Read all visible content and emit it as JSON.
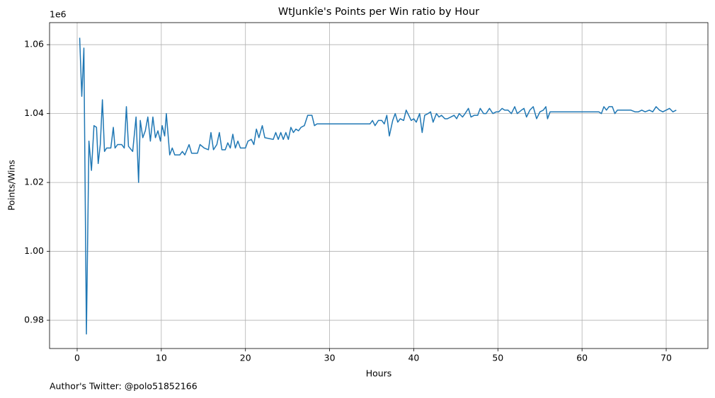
{
  "chart_data": {
    "type": "line",
    "title": "WtJunkîe's Points per Win ratio by Hour",
    "xlabel": "Hours",
    "ylabel": "Points/Wins",
    "y_offset_label": "1e6",
    "footnote": "Author's Twitter: @polo51852166",
    "xlim": [
      -3.28,
      74.96
    ],
    "ylim": [
      0.9718,
      1.0664
    ],
    "xticks": [
      0,
      10,
      20,
      30,
      40,
      50,
      60,
      70
    ],
    "yticks": [
      0.98,
      {
        "value": 1,
        "label": "1.00"
      },
      1.02,
      1.04,
      1.06
    ],
    "grid": true,
    "series": [
      {
        "color": "#1f77b4",
        "x": [
          0.3,
          0.55,
          0.8,
          1.1,
          1.4,
          1.7,
          2.0,
          2.3,
          2.5,
          2.75,
          3.0,
          3.25,
          3.5,
          4.0,
          4.3,
          4.5,
          4.8,
          5.3,
          5.6,
          5.85,
          6.1,
          6.6,
          7.0,
          7.3,
          7.5,
          7.8,
          8.1,
          8.4,
          8.7,
          9.0,
          9.3,
          9.6,
          9.9,
          10.1,
          10.4,
          10.6,
          11.0,
          11.3,
          11.6,
          12.2,
          12.5,
          12.8,
          13.3,
          13.6,
          14.3,
          14.6,
          15.1,
          15.6,
          15.9,
          16.2,
          16.6,
          16.9,
          17.2,
          17.6,
          17.9,
          18.2,
          18.5,
          18.8,
          19.1,
          19.4,
          20.0,
          20.3,
          20.7,
          21.0,
          21.3,
          21.6,
          22.0,
          22.3,
          23.3,
          23.6,
          23.9,
          24.2,
          24.5,
          24.8,
          25.1,
          25.4,
          25.7,
          26.0,
          26.3,
          26.6,
          27.0,
          27.4,
          27.9,
          28.2,
          28.5,
          34.8,
          35.1,
          35.4,
          35.8,
          36.2,
          36.5,
          36.8,
          37.1,
          37.5,
          37.8,
          38.1,
          38.4,
          38.8,
          39.1,
          39.4,
          39.7,
          40.0,
          40.3,
          40.7,
          41.0,
          41.3,
          41.7,
          42.0,
          42.3,
          42.7,
          43.0,
          43.3,
          43.7,
          44.0,
          44.4,
          44.8,
          45.1,
          45.4,
          45.8,
          46.1,
          46.5,
          46.8,
          47.2,
          47.6,
          47.9,
          48.3,
          48.6,
          49.0,
          49.4,
          49.8,
          50.1,
          50.5,
          50.8,
          51.2,
          51.6,
          52.0,
          52.3,
          52.8,
          53.1,
          53.4,
          53.8,
          54.2,
          54.6,
          55.0,
          55.4,
          55.7,
          55.9,
          56.2,
          62.0,
          62.3,
          62.6,
          62.9,
          63.2,
          63.6,
          63.9,
          64.2,
          64.6,
          65.0,
          65.4,
          65.8,
          66.3,
          66.7,
          67.1,
          67.5,
          68.0,
          68.4,
          68.8,
          69.2,
          69.6,
          70.0,
          70.4,
          70.8,
          71.2
        ],
        "values": [
          1.062,
          1.045,
          1.059,
          0.976,
          1.032,
          1.0235,
          1.0365,
          1.036,
          1.0255,
          1.031,
          1.044,
          1.029,
          1.03,
          1.03,
          1.036,
          1.03,
          1.031,
          1.031,
          1.03,
          1.042,
          1.0305,
          1.029,
          1.039,
          1.02,
          1.038,
          1.033,
          1.035,
          1.039,
          1.032,
          1.039,
          1.033,
          1.035,
          1.032,
          1.0365,
          1.0335,
          1.04,
          1.028,
          1.03,
          1.028,
          1.028,
          1.029,
          1.028,
          1.031,
          1.0285,
          1.0285,
          1.031,
          1.03,
          1.0295,
          1.0345,
          1.0295,
          1.031,
          1.0345,
          1.0295,
          1.0295,
          1.0315,
          1.03,
          1.034,
          1.03,
          1.032,
          1.03,
          1.03,
          1.032,
          1.0325,
          1.031,
          1.0355,
          1.033,
          1.0365,
          1.033,
          1.0325,
          1.0345,
          1.0325,
          1.0345,
          1.0325,
          1.0345,
          1.0325,
          1.036,
          1.0345,
          1.0355,
          1.035,
          1.036,
          1.0365,
          1.0395,
          1.0395,
          1.0365,
          1.037,
          1.037,
          1.038,
          1.0365,
          1.038,
          1.038,
          1.037,
          1.0395,
          1.0335,
          1.038,
          1.04,
          1.0375,
          1.0385,
          1.038,
          1.041,
          1.0395,
          1.038,
          1.0385,
          1.0375,
          1.04,
          1.0345,
          1.0395,
          1.04,
          1.0405,
          1.0375,
          1.04,
          1.039,
          1.0395,
          1.0385,
          1.0385,
          1.039,
          1.0395,
          1.0385,
          1.04,
          1.039,
          1.04,
          1.0415,
          1.039,
          1.0395,
          1.0395,
          1.0415,
          1.04,
          1.04,
          1.0415,
          1.04,
          1.0405,
          1.0405,
          1.0415,
          1.041,
          1.041,
          1.04,
          1.042,
          1.04,
          1.041,
          1.0415,
          1.039,
          1.041,
          1.042,
          1.0385,
          1.0405,
          1.041,
          1.042,
          1.0385,
          1.0405,
          1.0405,
          1.04,
          1.042,
          1.041,
          1.042,
          1.042,
          1.04,
          1.041,
          1.041,
          1.041,
          1.041,
          1.041,
          1.0405,
          1.0405,
          1.041,
          1.0405,
          1.041,
          1.0405,
          1.042,
          1.041,
          1.0405,
          1.041,
          1.0415,
          1.0405,
          1.041
        ]
      }
    ]
  }
}
